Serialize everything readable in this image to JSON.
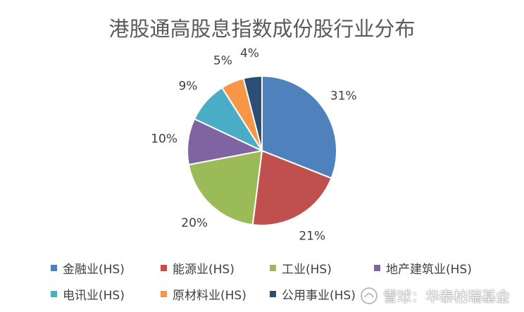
{
  "chart_data": {
    "type": "pie",
    "title": "港股通高股息指数成份股行业分布",
    "categories": [
      "金融业(HS)",
      "能源业(HS)",
      "工业(HS)",
      "地产建筑业(HS)",
      "电讯业(HS)",
      "原材料业(HS)",
      "公用事业(HS)"
    ],
    "values": [
      31,
      21,
      20,
      10,
      9,
      5,
      4
    ],
    "labels": [
      "31%",
      "21%",
      "20%",
      "10%",
      "9%",
      "5%",
      "4%"
    ],
    "colors": [
      "#4F81BD",
      "#C0504D",
      "#9BBB59",
      "#8064A2",
      "#4BACC6",
      "#F79646",
      "#2C4D75"
    ],
    "legend_position": "bottom"
  },
  "watermark": {
    "text": "雪球：华泰柏瑞基金"
  }
}
